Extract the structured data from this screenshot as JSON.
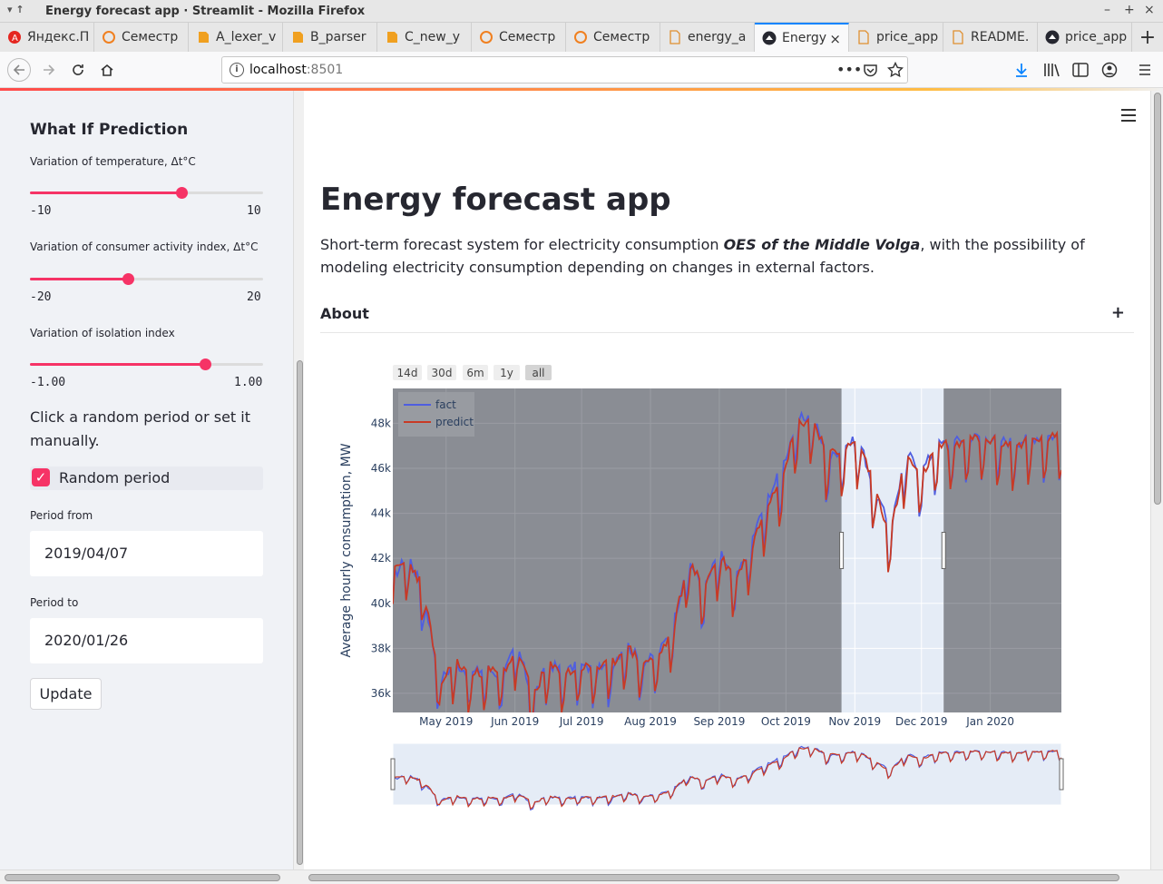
{
  "window": {
    "title": "Energy forecast app · Streamlit - Mozilla Firefox",
    "controls": [
      "–",
      "+",
      "×"
    ]
  },
  "tabs": [
    {
      "label": "Яндекс.П",
      "icon": "yandex-icon"
    },
    {
      "label": "Семестр",
      "icon": "ring-icon"
    },
    {
      "label": "A_lexer_v",
      "icon": "doc-icon"
    },
    {
      "label": "B_parser",
      "icon": "doc-icon"
    },
    {
      "label": "C_new_y",
      "icon": "doc-icon"
    },
    {
      "label": "Семестр",
      "icon": "ring-icon"
    },
    {
      "label": "Семестр",
      "icon": "ring-icon"
    },
    {
      "label": "energy_a",
      "icon": "page-icon"
    },
    {
      "label": "Energy",
      "icon": "streamlit-icon",
      "active": true
    },
    {
      "label": "price_app",
      "icon": "page-icon"
    },
    {
      "label": "README.",
      "icon": "page-icon"
    },
    {
      "label": "price_app",
      "icon": "streamlit-icon"
    }
  ],
  "nav": {
    "url_host": "localhost",
    "url_port": ":8501"
  },
  "sidebar": {
    "title": "What If Prediction",
    "sliders": [
      {
        "label": "Variation of temperature, Δt°C",
        "min": "-10",
        "max": "10",
        "value_fraction": 0.65
      },
      {
        "label": "Variation of consumer activity index, Δt°C",
        "min": "-20",
        "max": "20",
        "value_fraction": 0.42
      },
      {
        "label": "Variation of isolation index",
        "min": "-1.00",
        "max": "1.00",
        "value_fraction": 0.75
      }
    ],
    "random_text": "Click a random period or set it manually.",
    "checkbox_label": "Random period",
    "checkbox_checked": true,
    "period_from_label": "Period from",
    "period_from_value": "2019/04/07",
    "period_to_label": "Period to",
    "period_to_value": "2020/01/26",
    "update_label": "Update"
  },
  "main": {
    "title": "Energy forecast app",
    "desc_before": "Short-term forecast system for electricity consumption ",
    "desc_em": "OES of the Middle Volga",
    "desc_after": ", with the possibility of modeling electricity consumption depending on changes in external factors.",
    "about_label": "About",
    "about_toggle": "+"
  },
  "colors": {
    "accent": "#f63366",
    "fact": "#4f5ee0",
    "predict": "#c83a25",
    "shade": "#8a8d94",
    "plot_bg": "#e5ecf6"
  },
  "chart_data": {
    "type": "line",
    "ylabel": "Average hourly consumption, MW",
    "range_buttons": [
      "14d",
      "30d",
      "6m",
      "1y",
      "all"
    ],
    "active_range_button": "all",
    "x_tick_labels": [
      "May 2019",
      "Jun 2019",
      "Jul 2019",
      "Aug 2019",
      "Sep 2019",
      "Oct 2019",
      "Nov 2019",
      "Dec 2019",
      "Jan 2020"
    ],
    "y_tick_labels": [
      "36k",
      "38k",
      "40k",
      "42k",
      "44k",
      "46k",
      "48k"
    ],
    "ylim": [
      35150,
      49550
    ],
    "xlim": [
      "2019-04-07",
      "2020-02-02"
    ],
    "highlight_period": [
      "2019-10-26",
      "2019-12-11"
    ],
    "legend": [
      "fact",
      "predict"
    ],
    "legend_position": "top-left",
    "weekly_x_start": "2019-04-07",
    "series": [
      {
        "name": "fact",
        "weekly": [
          40800,
          41800,
          40100,
          36200,
          37000,
          36500,
          36800,
          36400,
          37800,
          35400,
          37000,
          36600,
          36900,
          36700,
          36800,
          37900,
          37000,
          37300,
          38600,
          41700,
          40200,
          42000,
          40600,
          42300,
          44200,
          45600,
          47800,
          48000,
          46000,
          46700,
          46900,
          44700,
          42900,
          46400,
          45500,
          46700,
          46800,
          47000,
          47100,
          46900,
          46800,
          47000,
          47100
        ]
      },
      {
        "name": "predict",
        "weekly": [
          41000,
          41600,
          40300,
          36000,
          37100,
          36400,
          36700,
          36500,
          37600,
          35600,
          36900,
          36500,
          36800,
          36800,
          36900,
          37700,
          37100,
          37200,
          38400,
          41500,
          40400,
          41800,
          40800,
          42000,
          44000,
          45300,
          47600,
          47900,
          46200,
          46500,
          46800,
          44800,
          42700,
          46200,
          45300,
          46600,
          46700,
          46900,
          47000,
          46800,
          46700,
          46900,
          47000
        ]
      }
    ]
  }
}
